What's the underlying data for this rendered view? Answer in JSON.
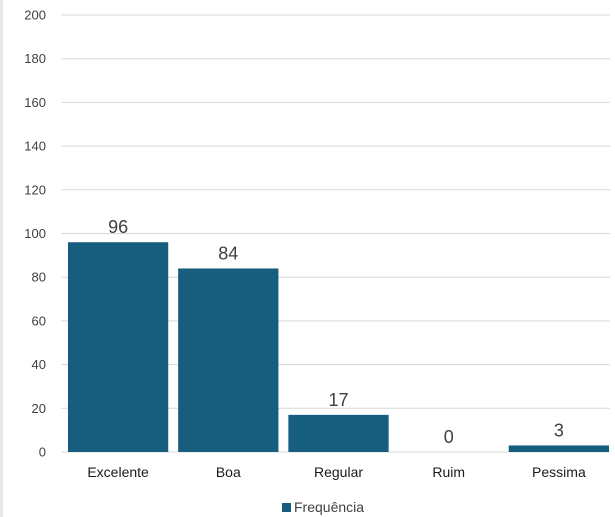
{
  "chart_data": {
    "type": "bar",
    "categories": [
      "Excelente",
      "Boa",
      "Regular",
      "Ruim",
      "Pessima"
    ],
    "series": [
      {
        "name": "Frequência",
        "values": [
          96,
          84,
          17,
          0,
          3
        ]
      }
    ],
    "data_labels": [
      "96",
      "84",
      "17",
      "0",
      "3"
    ],
    "y_ticks": [
      "0",
      "20",
      "40",
      "60",
      "80",
      "100",
      "120",
      "140",
      "160",
      "180",
      "200"
    ],
    "ylim": [
      0,
      200
    ],
    "grid": true,
    "legend_position": "bottom",
    "colors": {
      "bar": "#175d7d",
      "grid": "#d9d9d9"
    }
  }
}
